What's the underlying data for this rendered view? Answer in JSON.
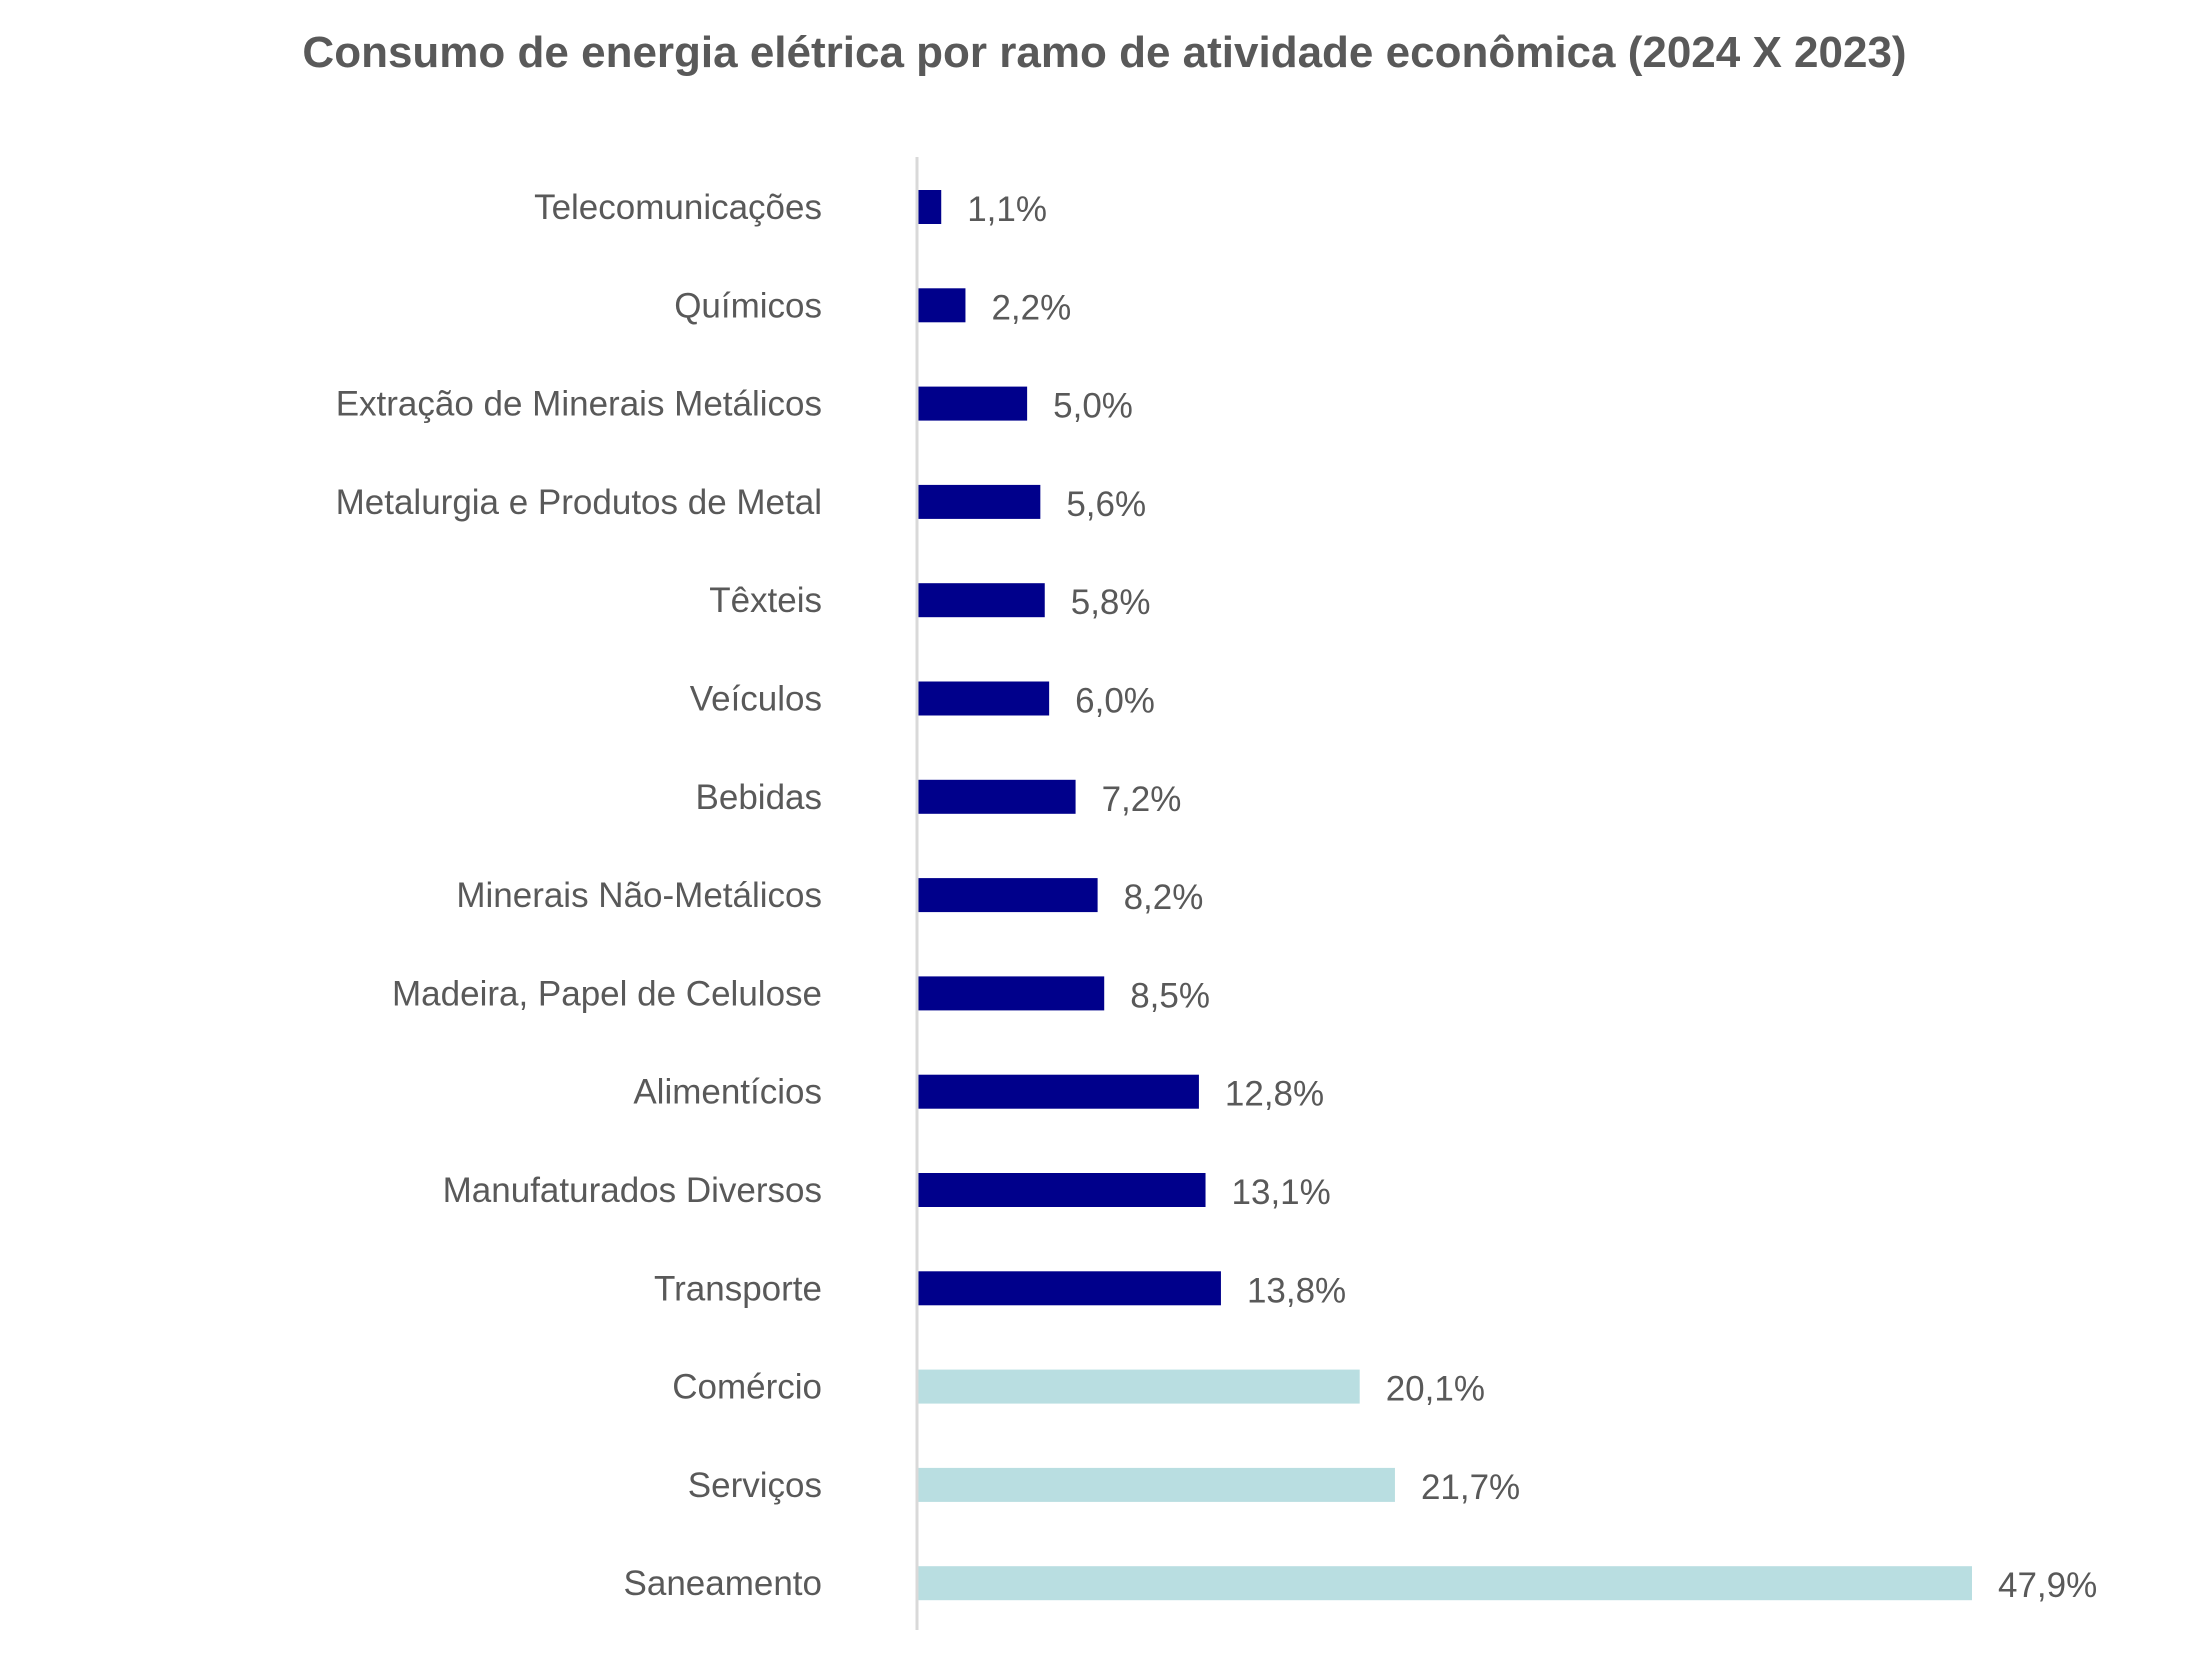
{
  "chart_data": {
    "type": "bar",
    "orientation": "horizontal",
    "title": "Consumo de energia elétrica por ramo de atividade econômica (2024 X 2023)",
    "xlabel": "",
    "ylabel": "",
    "grid": false,
    "legend": "none",
    "unit": "%",
    "xlim": [
      0,
      47.9
    ],
    "categories": [
      "Telecomunicações",
      "Químicos",
      "Extração de Minerais Metálicos",
      "Metalurgia e Produtos de Metal",
      "Têxteis",
      "Veículos",
      "Bebidas",
      "Minerais Não-Metálicos",
      "Madeira, Papel de Celulose",
      "Alimentícios",
      "Manufaturados Diversos",
      "Transporte",
      "Comércio",
      "Serviços",
      "Saneamento"
    ],
    "values": [
      1.1,
      2.2,
      5.0,
      5.6,
      5.8,
      6.0,
      7.2,
      8.2,
      8.5,
      12.8,
      13.1,
      13.8,
      20.1,
      21.7,
      47.9
    ],
    "value_labels": [
      "1,1%",
      "2,2%",
      "5,0%",
      "5,6%",
      "5,8%",
      "6,0%",
      "7,2%",
      "8,2%",
      "8,5%",
      "12,8%",
      "13,1%",
      "13,8%",
      "20,1%",
      "21,7%",
      "47,9%"
    ],
    "bar_colors": [
      "#00008B",
      "#00008B",
      "#00008B",
      "#00008B",
      "#00008B",
      "#00008B",
      "#00008B",
      "#00008B",
      "#00008B",
      "#00008B",
      "#00008B",
      "#00008B",
      "#B9DEE1",
      "#B9DEE1",
      "#B9DEE1"
    ],
    "axis_color": "#D9D9D9",
    "text_color": "#595959"
  }
}
